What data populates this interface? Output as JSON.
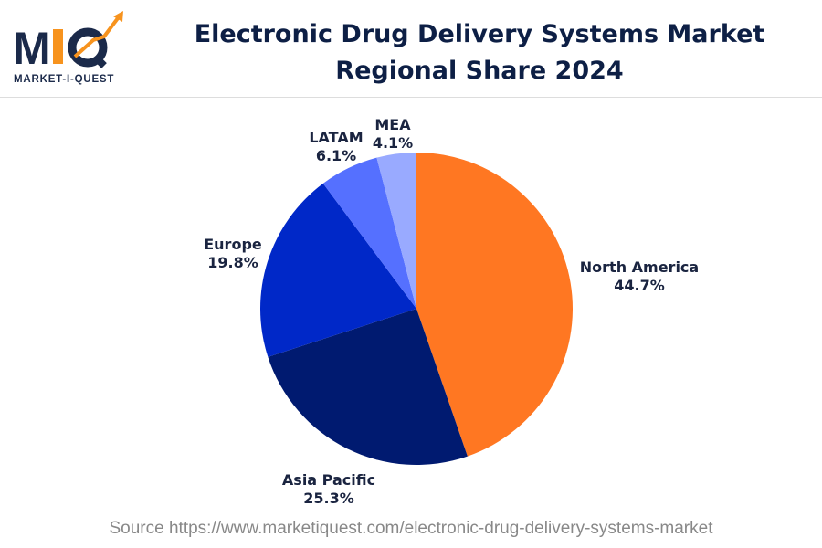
{
  "logo": {
    "text": "MIQ",
    "subtext": "MARKET-I-QUEST"
  },
  "title": "Electronic Drug Delivery Systems Market Regional Share 2024",
  "source": "Source https://www.marketiquest.com/electronic-drug-delivery-systems-market",
  "chart_data": {
    "type": "pie",
    "title": "Electronic Drug Delivery Systems Market Regional Share 2024",
    "categories": [
      "North America",
      "Asia Pacific",
      "Europe",
      "LATAM",
      "MEA"
    ],
    "values": [
      44.7,
      25.3,
      19.8,
      6.1,
      4.1
    ],
    "labels": [
      "44.7%",
      "25.3%",
      "19.8%",
      "6.1%",
      "4.1%"
    ],
    "colors": [
      "#FF7722",
      "#001A70",
      "#0028C8",
      "#5570FF",
      "#99AAFF"
    ],
    "start": "top, clockwise"
  }
}
